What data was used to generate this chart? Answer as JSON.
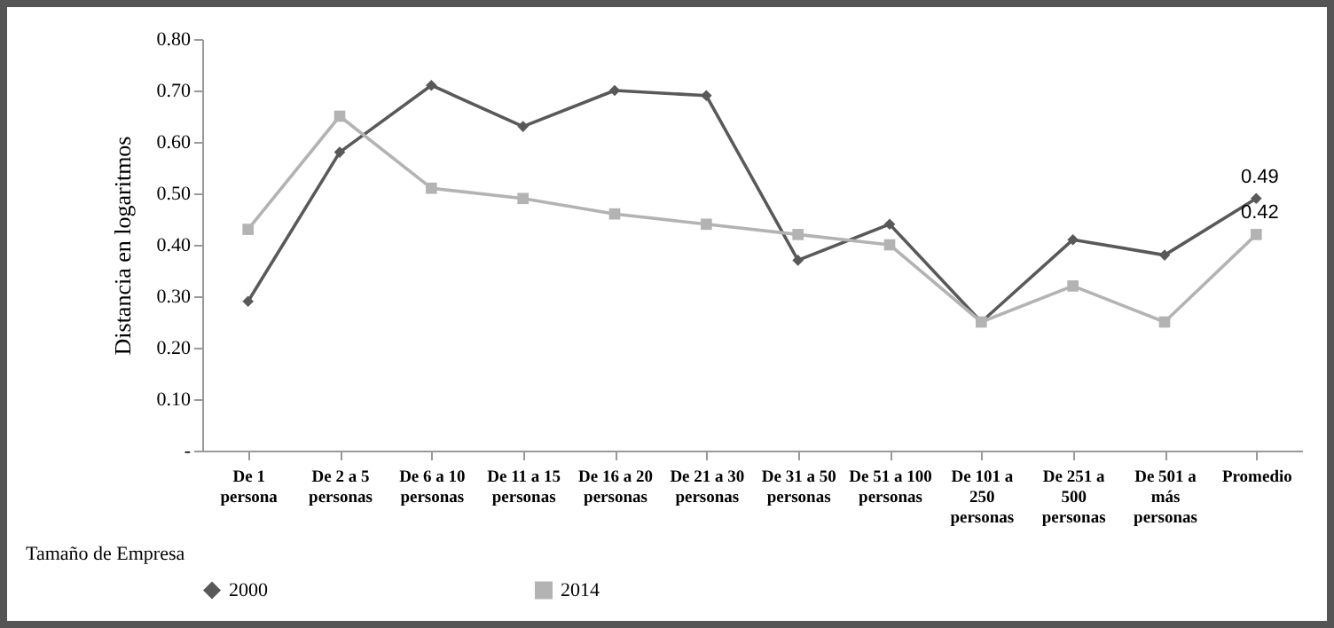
{
  "chart_data": {
    "type": "line",
    "xlabel": "Tamaño de Empresa",
    "ylabel": "Distancia  en logaritmos",
    "categories": [
      "De 1 persona",
      "De 2 a 5 personas",
      "De 6 a 10 personas",
      "De 11 a 15 personas",
      "De 16 a 20 personas",
      "De 21 a 30 personas",
      "De 31 a 50 personas",
      "De 51 a 100 personas",
      "De 101 a 250 personas",
      "De 251 a 500 personas",
      "De 501 a más personas",
      "Promedio"
    ],
    "series": [
      {
        "name": "2000",
        "color": "#595959",
        "marker": "diamond",
        "values": [
          0.29,
          0.58,
          0.71,
          0.63,
          0.7,
          0.69,
          0.37,
          0.44,
          0.25,
          0.41,
          0.38,
          0.49
        ],
        "value_labels": [
          null,
          null,
          null,
          null,
          null,
          null,
          null,
          null,
          null,
          null,
          null,
          "0.49"
        ]
      },
      {
        "name": "2014",
        "color": "#b3b3b3",
        "marker": "square",
        "values": [
          0.43,
          0.65,
          0.51,
          0.49,
          0.46,
          0.44,
          0.42,
          0.4,
          0.25,
          0.32,
          0.25,
          0.42
        ],
        "value_labels": [
          null,
          null,
          null,
          null,
          null,
          null,
          null,
          null,
          null,
          null,
          null,
          "0.42"
        ]
      }
    ],
    "ylim": [
      0,
      0.8
    ],
    "yticks": [
      {
        "value": 0,
        "label": "-"
      },
      {
        "value": 0.1,
        "label": "0.10"
      },
      {
        "value": 0.2,
        "label": "0.20"
      },
      {
        "value": 0.3,
        "label": "0.30"
      },
      {
        "value": 0.4,
        "label": "0.40"
      },
      {
        "value": 0.5,
        "label": "0.50"
      },
      {
        "value": 0.6,
        "label": "0.60"
      },
      {
        "value": 0.7,
        "label": "0.70"
      },
      {
        "value": 0.8,
        "label": "0.80"
      }
    ],
    "grid": false,
    "legend": "bottom"
  }
}
